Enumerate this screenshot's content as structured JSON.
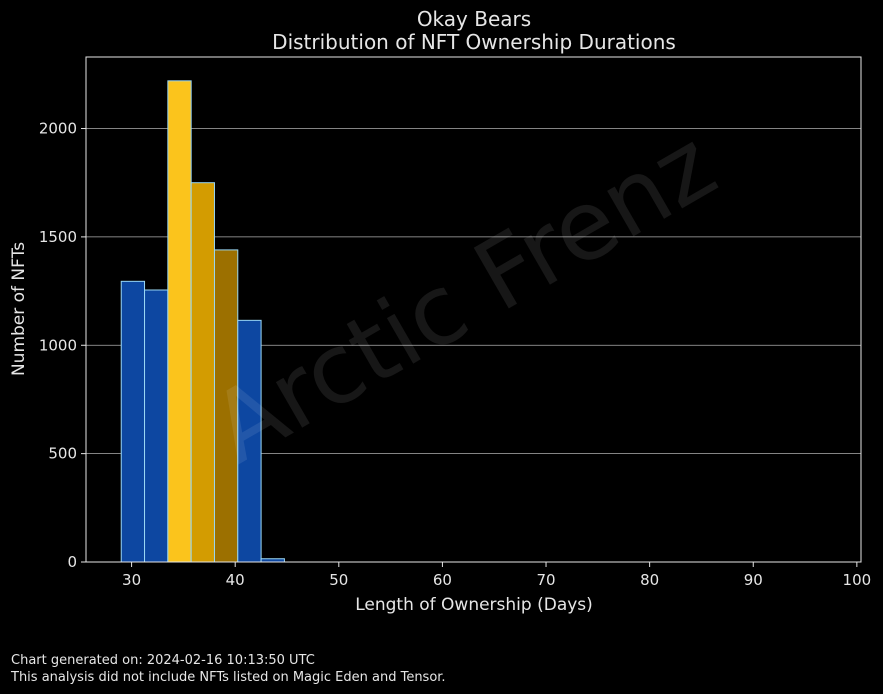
{
  "chart_data": {
    "type": "bar",
    "title": "Okay Bears",
    "subtitle": "Distribution of NFT Ownership Durations",
    "xlabel": "Length of Ownership (Days)",
    "ylabel": "Number of NFTs",
    "xlim": [
      25.6,
      100.4
    ],
    "ylim": [
      0,
      2330
    ],
    "xticks": [
      30,
      40,
      50,
      60,
      70,
      80,
      90,
      100
    ],
    "yticks": [
      0,
      500,
      1000,
      1500,
      2000
    ],
    "grid": "horizontal",
    "bin_width": 2.25,
    "bins": [
      {
        "start": 29.0,
        "value": 1295,
        "color": "#0d47a1"
      },
      {
        "start": 31.25,
        "value": 1255,
        "color": "#0d47a1"
      },
      {
        "start": 33.5,
        "value": 2220,
        "color": "#fbc41c"
      },
      {
        "start": 35.75,
        "value": 1750,
        "color": "#d39c01"
      },
      {
        "start": 38.0,
        "value": 1440,
        "color": "#9c7000"
      },
      {
        "start": 40.25,
        "value": 1115,
        "color": "#0d47a1"
      },
      {
        "start": 42.5,
        "value": 15,
        "color": "#0d47a1"
      }
    ],
    "edge_color": "#9ad8f5",
    "watermark": "Arctic Frenz"
  },
  "footer": {
    "generated": "Chart generated on: 2024-02-16 10:13:50 UTC",
    "note": "This analysis did not include NFTs listed on Magic Eden and Tensor."
  }
}
